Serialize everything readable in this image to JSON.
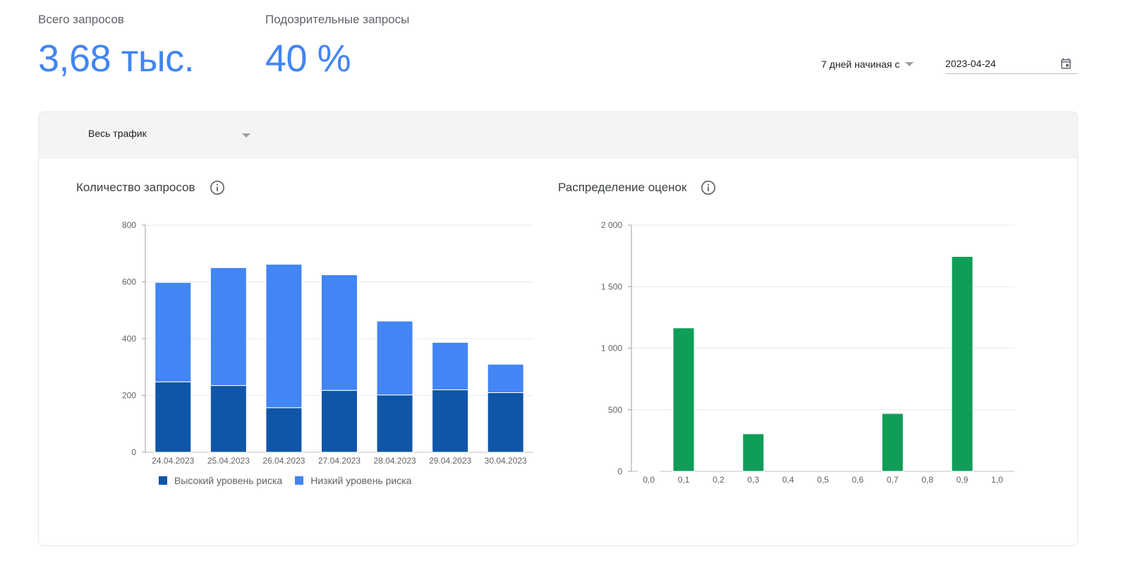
{
  "metrics": {
    "total": {
      "label": "Всего запросов",
      "value": "3,68 тыс."
    },
    "suspicious": {
      "label": "Подозрительные запросы",
      "value": "40 %"
    }
  },
  "period": {
    "label": "7 дней начиная с",
    "date": "2023-04-24"
  },
  "filter": {
    "traffic": "Весь трафик"
  },
  "icons": {
    "calendar": "calendar-icon",
    "info": "info-icon",
    "dropdown": "chevron-down-icon"
  },
  "colors": {
    "accent": "#4285f4",
    "high_risk": "#0f56a8",
    "low_risk": "#4285f4",
    "scores": "#0f9d58"
  },
  "chart_data": [
    {
      "type": "bar",
      "stacked": true,
      "title": "Количество запросов",
      "categories": [
        "24.04.2023",
        "25.04.2023",
        "26.04.2023",
        "27.04.2023",
        "28.04.2023",
        "29.04.2023",
        "30.04.2023"
      ],
      "series": [
        {
          "name": "Высокий уровень риска",
          "color": "#0f56a8",
          "values": [
            248,
            235,
            157,
            218,
            202,
            220,
            210
          ]
        },
        {
          "name": "Низкий уровень риска",
          "color": "#4285f4",
          "values": [
            350,
            415,
            505,
            407,
            260,
            167,
            100
          ]
        }
      ],
      "yticks": [
        "0",
        "200",
        "400",
        "600",
        "800"
      ],
      "ylim": [
        0,
        800
      ],
      "legend": "bottom",
      "grid": true
    },
    {
      "type": "bar",
      "title": "Распределение оценок",
      "categories": [
        "0,0",
        "0,1",
        "0,2",
        "0,3",
        "0,4",
        "0,5",
        "0,6",
        "0,7",
        "0,8",
        "0,9",
        "1,0"
      ],
      "series": [
        {
          "color": "#0f9d58",
          "values": [
            5,
            1165,
            0,
            305,
            0,
            0,
            0,
            470,
            0,
            1745,
            0
          ]
        }
      ],
      "yticks": [
        "0",
        "500",
        "1 000",
        "1 500",
        "2 000"
      ],
      "ylim": [
        0,
        2000
      ],
      "grid": true
    }
  ]
}
